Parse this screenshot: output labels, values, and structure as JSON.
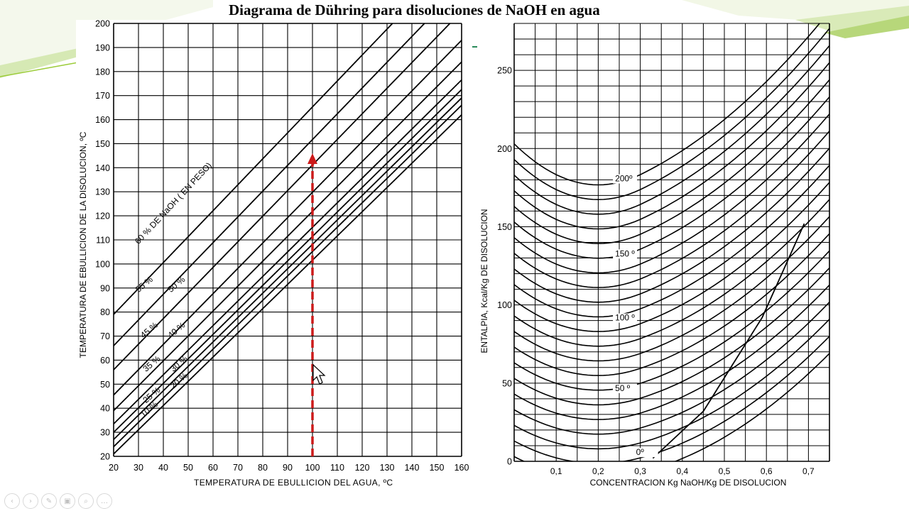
{
  "slide": {
    "title": "Diagrama de Dühring para disoluciones de NaOH en agua"
  },
  "toolbar": {
    "buttons": [
      {
        "name": "previous-slide-button",
        "icon": "‹"
      },
      {
        "name": "next-slide-button",
        "icon": "›"
      },
      {
        "name": "pen-button",
        "icon": "✎"
      },
      {
        "name": "slides-button",
        "icon": "▣"
      },
      {
        "name": "zoom-button",
        "icon": "⌕"
      },
      {
        "name": "more-button",
        "icon": "…"
      }
    ]
  },
  "colors": {
    "arrow": "#cc1a1a",
    "grid": "#000000",
    "accent_green": "#9ccc3a"
  },
  "chart_data": [
    {
      "type": "line",
      "xlabel": "TEMPERATURA DE EBULLICION DEL AGUA, ºC",
      "ylabel": "TEMPERATURA  DE EBULLICION DE LA DISOLUCION, ºC",
      "xlim": [
        20,
        160
      ],
      "ylim": [
        20,
        200
      ],
      "x_ticks": [
        20,
        30,
        40,
        50,
        60,
        70,
        80,
        90,
        100,
        110,
        120,
        130,
        140,
        150,
        160
      ],
      "y_ticks": [
        20,
        30,
        40,
        50,
        60,
        70,
        80,
        90,
        100,
        110,
        120,
        130,
        140,
        150,
        160,
        170,
        180,
        190,
        200
      ],
      "series": [
        {
          "name": "10%",
          "x": [
            20,
            160
          ],
          "y": [
            21,
            162
          ]
        },
        {
          "name": "20%",
          "x": [
            20,
            160
          ],
          "y": [
            24,
            166
          ]
        },
        {
          "name": "25%",
          "x": [
            20,
            160
          ],
          "y": [
            27,
            169
          ]
        },
        {
          "name": "30%",
          "x": [
            20,
            160
          ],
          "y": [
            30,
            172.5
          ]
        },
        {
          "name": "35%",
          "x": [
            20,
            160
          ],
          "y": [
            33.5,
            176.5
          ]
        },
        {
          "name": "40%",
          "x": [
            20,
            160
          ],
          "y": [
            39,
            184
          ]
        },
        {
          "name": "45%",
          "x": [
            20,
            160
          ],
          "y": [
            45.5,
            193
          ]
        },
        {
          "name": "50%",
          "x": [
            20,
            160
          ],
          "y": [
            56,
            205
          ]
        },
        {
          "name": "55%",
          "x": [
            20,
            160
          ],
          "y": [
            66,
            216
          ]
        },
        {
          "name": "60 % DE NaOH (EN PESO)",
          "x": [
            20,
            160
          ],
          "y": [
            79,
            230
          ]
        }
      ],
      "line_labels": [
        {
          "text": "60 % DE NaOH ( EN PESO)",
          "x": 30,
          "y": 108,
          "angle": 47
        },
        {
          "text": "55 %",
          "x": 30,
          "y": 88,
          "angle": 40
        },
        {
          "text": "50 %",
          "x": 43,
          "y": 88,
          "angle": 40
        },
        {
          "text": "45 %",
          "x": 32,
          "y": 69,
          "angle": 40
        },
        {
          "text": "40 %",
          "x": 43,
          "y": 69,
          "angle": 40
        },
        {
          "text": "35 %",
          "x": 33,
          "y": 55,
          "angle": 40
        },
        {
          "text": "30 %",
          "x": 44,
          "y": 55,
          "angle": 40
        },
        {
          "text": "25 %",
          "x": 33,
          "y": 42,
          "angle": 40
        },
        {
          "text": "20 %",
          "x": 44,
          "y": 48,
          "angle": 40
        },
        {
          "text": "10 %",
          "x": 32,
          "y": 36,
          "angle": 40
        }
      ],
      "annotation": {
        "type": "dashed-arrow",
        "x": 100,
        "y_from": 20,
        "y_to": 146
      },
      "grid": true
    },
    {
      "type": "line",
      "xlabel": "CONCENTRACION  Kg NaOH/Kg DE DISOLUCION",
      "ylabel": "ENTALPIA, Kcal/Kg DE DISOLUCION",
      "xlim": [
        0,
        0.75
      ],
      "ylim": [
        0,
        280
      ],
      "x_ticks": [
        "0,1",
        "0,2",
        "0,3",
        "0,4",
        "0,5",
        "0,6",
        "0,7"
      ],
      "y_ticks": [
        0,
        50,
        100,
        150,
        200,
        250
      ],
      "isotherms": [
        0,
        10,
        20,
        30,
        40,
        50,
        60,
        70,
        80,
        90,
        100,
        110,
        120,
        130,
        140,
        150,
        160,
        170,
        180,
        190,
        200
      ],
      "isotherm_labels": [
        {
          "text": "200º",
          "x": 0.24,
          "y": 179
        },
        {
          "text": "150 º",
          "x": 0.24,
          "y": 131
        },
        {
          "text": "100 º",
          "x": 0.24,
          "y": 90
        },
        {
          "text": "50 º",
          "x": 0.24,
          "y": 45
        },
        {
          "text": "0º",
          "x": 0.29,
          "y": 4
        }
      ],
      "grid": true
    }
  ]
}
